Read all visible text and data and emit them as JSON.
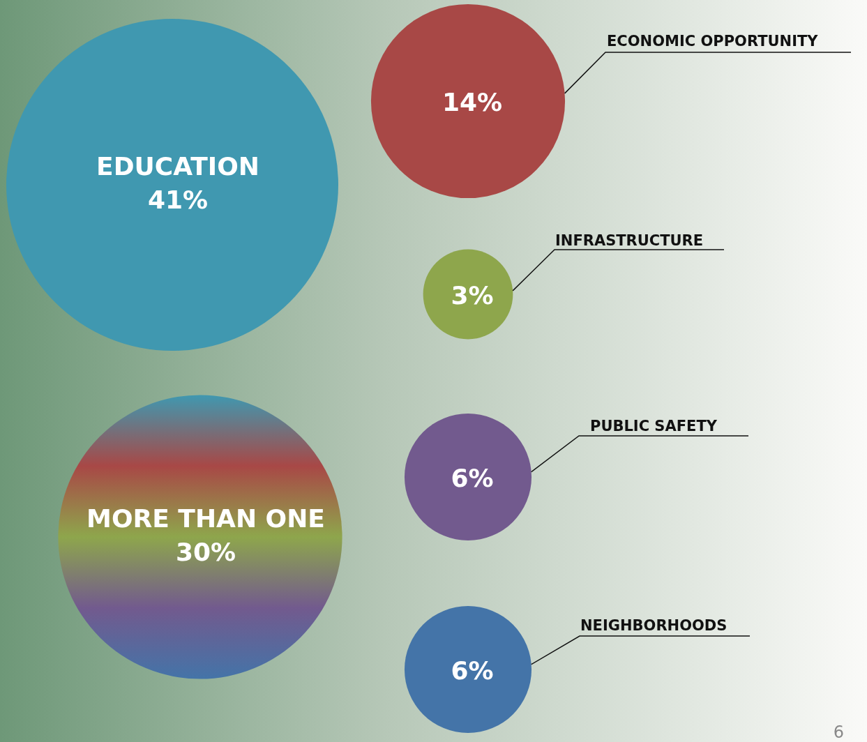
{
  "chart_data": {
    "type": "other",
    "categories": [
      "EDUCATION",
      "ECONOMIC OPPORTUNITY",
      "INFRASTRUCTURE",
      "MORE THAN ONE",
      "PUBLIC SAFETY",
      "NEIGHBORHOODS"
    ],
    "values": [
      41,
      14,
      3,
      30,
      6,
      6
    ],
    "value_labels": [
      "41%",
      "14%",
      "3%",
      "30%",
      "6%",
      "6%"
    ],
    "colors": [
      "#4098b0",
      "#a84846",
      "#8ea64c",
      null,
      "#725a8e",
      "#4474a8"
    ],
    "annotations": [
      "6"
    ]
  }
}
